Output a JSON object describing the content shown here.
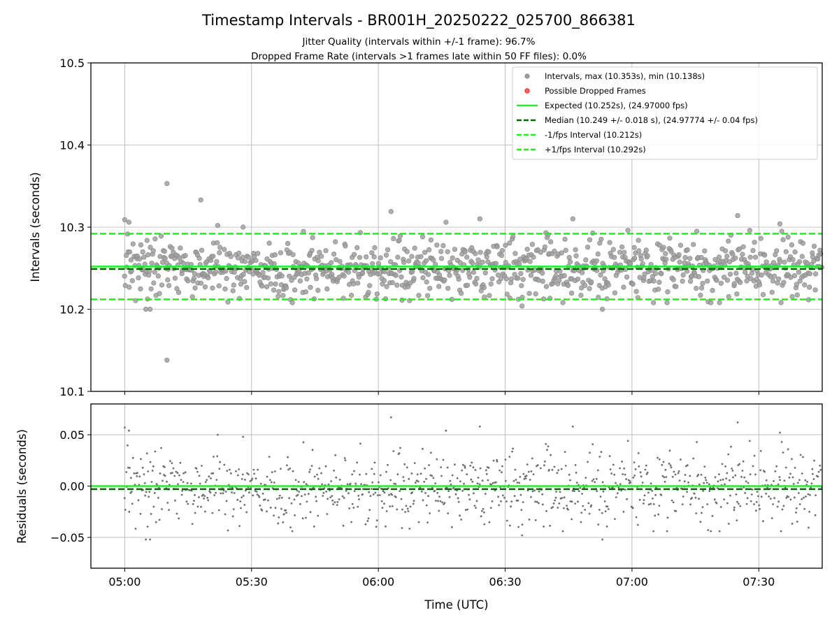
{
  "chart_data": [
    {
      "type": "scatter",
      "panel": "top",
      "title": "Timestamp Intervals - BR001H_20250222_025700_866381",
      "subtitle_1": "Jitter Quality (intervals within +/-1 frame): 96.7%",
      "subtitle_2": "Dropped Frame Rate (intervals >1 frames late within 50 FF files): 0.0%",
      "xlabel": "",
      "ylabel": "Intervals (seconds)",
      "ylim": [
        10.1,
        10.5
      ],
      "xlim": [
        "04:52",
        "07:45"
      ],
      "yticks": [
        "10.1",
        "10.2",
        "10.3",
        "10.4",
        "10.5"
      ],
      "grid": true,
      "legend_position": "top-right",
      "legend": [
        "Intervals, max (10.353s), min (10.138s)",
        "Possible Dropped Frames",
        "Expected (10.252s), (24.97000 fps)",
        "Median (10.249 +/- 0.018 s), (24.97774 +/- 0.04 fps)",
        "-1/fps Interval (10.212s)",
        "+1/fps Interval (10.292s)"
      ],
      "lines": {
        "expected": 10.252,
        "median": 10.249,
        "minus_1fps": 10.212,
        "plus_1fps": 10.292
      },
      "points_summary": {
        "count": 980,
        "x_start": "05:00",
        "x_end": "07:45",
        "max": 10.353,
        "min": 10.138,
        "median": 10.249,
        "std": 0.018
      },
      "notable_points": [
        {
          "x": "05:00",
          "y": 10.309
        },
        {
          "x": "05:01",
          "y": 10.306
        },
        {
          "x": "05:05",
          "y": 10.2
        },
        {
          "x": "05:06",
          "y": 10.2
        },
        {
          "x": "05:10",
          "y": 10.353
        },
        {
          "x": "05:10",
          "y": 10.138
        },
        {
          "x": "05:18",
          "y": 10.333
        },
        {
          "x": "05:22",
          "y": 10.302
        },
        {
          "x": "05:28",
          "y": 10.3
        },
        {
          "x": "06:03",
          "y": 10.319
        },
        {
          "x": "06:16",
          "y": 10.306
        },
        {
          "x": "06:24",
          "y": 10.31
        },
        {
          "x": "06:34",
          "y": 10.204
        },
        {
          "x": "06:46",
          "y": 10.31
        },
        {
          "x": "06:53",
          "y": 10.2
        },
        {
          "x": "07:25",
          "y": 10.314
        },
        {
          "x": "07:35",
          "y": 10.304
        }
      ],
      "colors": {
        "points": "#808080",
        "dropped": "#ff0000",
        "expected": "#00ff00",
        "median": "#006400",
        "interval": "#00ff00"
      }
    },
    {
      "type": "scatter",
      "panel": "bottom",
      "xlabel": "Time (UTC)",
      "ylabel": "Residuals (seconds)",
      "ylim": [
        -0.08,
        0.08
      ],
      "yticks": [
        "−0.05",
        "0.00",
        "0.05"
      ],
      "xticks": [
        "05:00",
        "05:30",
        "06:00",
        "06:30",
        "07:00",
        "07:30"
      ],
      "lines": {
        "expected": 0.0,
        "median": -0.003
      },
      "points_summary": {
        "count": 980,
        "min": -0.055,
        "max": 0.069
      }
    }
  ]
}
